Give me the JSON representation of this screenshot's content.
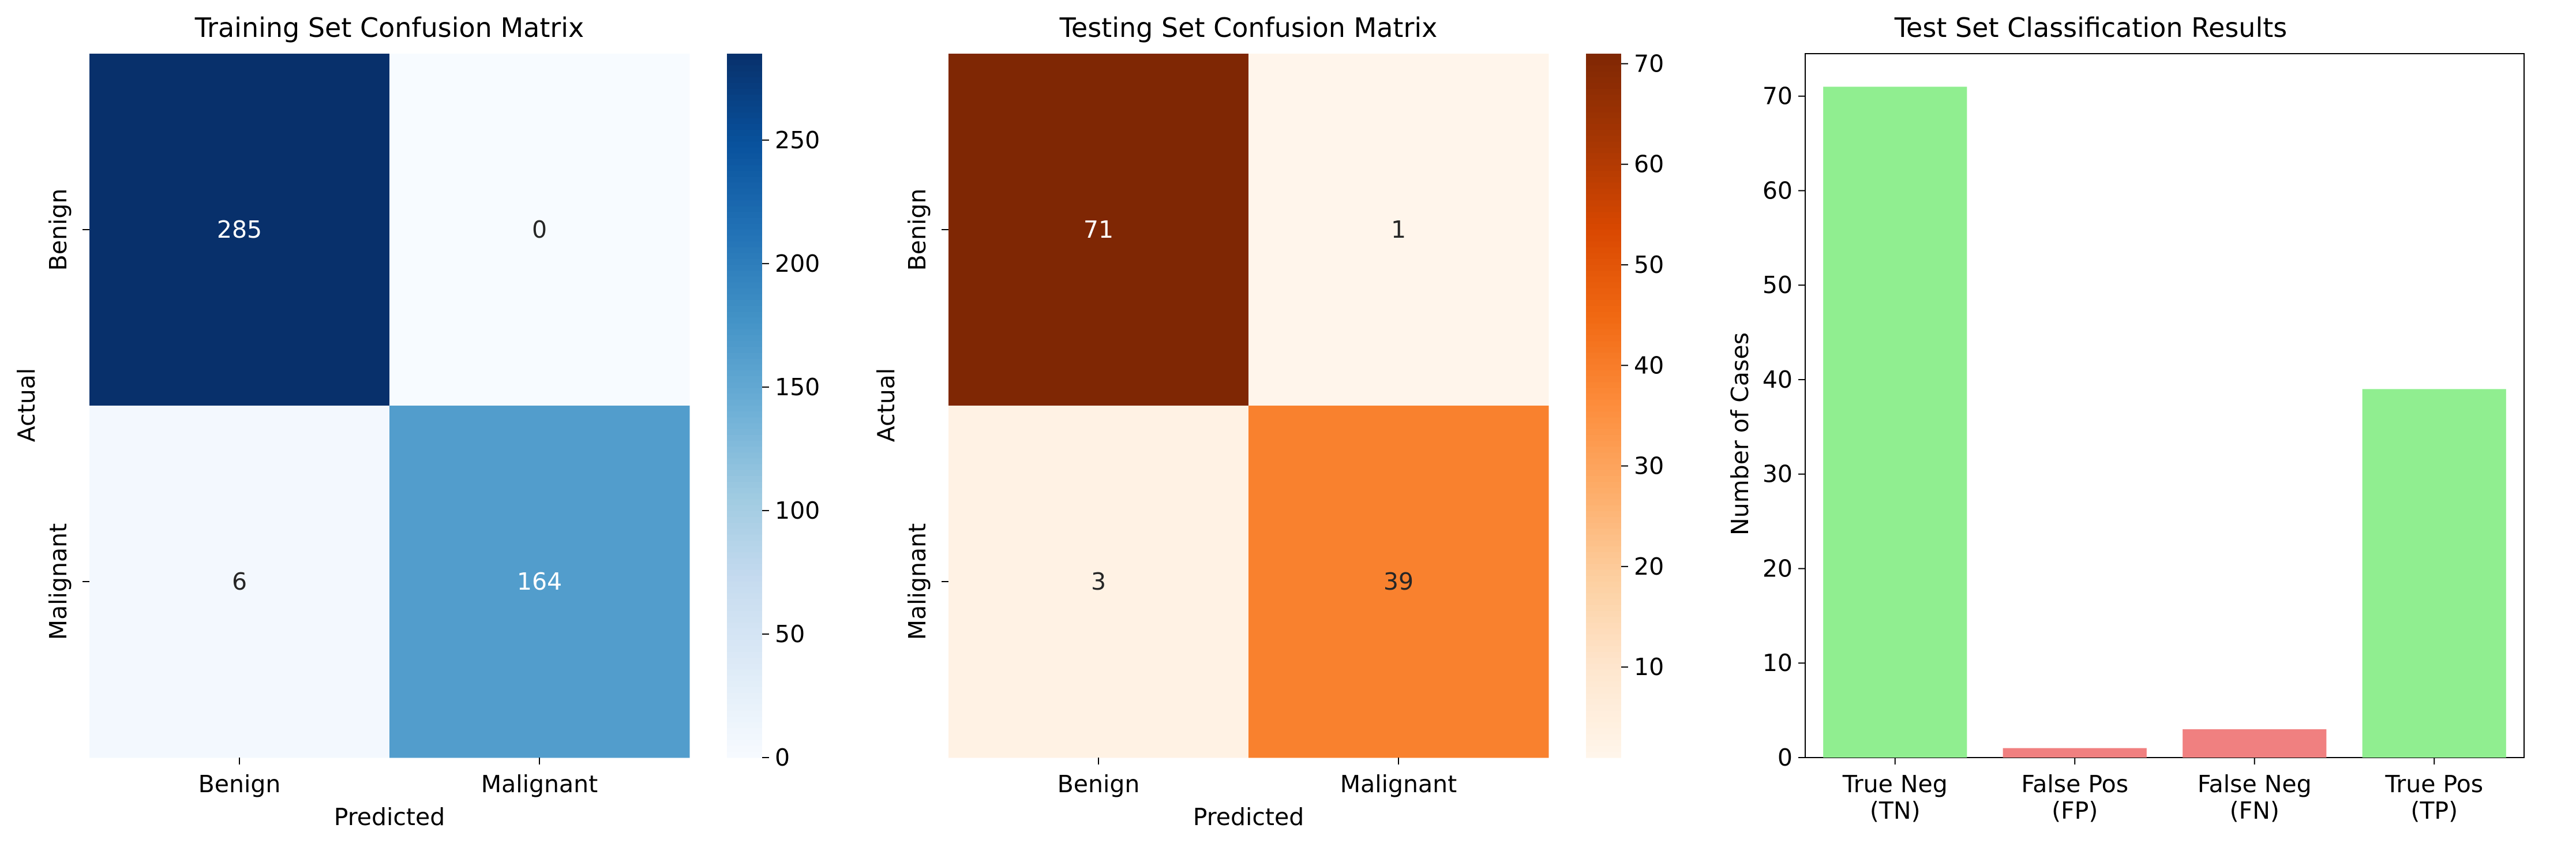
{
  "chart_data": [
    {
      "type": "heatmap",
      "title": "Training Set Confusion Matrix",
      "xlabel": "Predicted",
      "ylabel": "Actual",
      "x_categories": [
        "Benign",
        "Malignant"
      ],
      "y_categories": [
        "Benign",
        "Malignant"
      ],
      "values": [
        [
          285,
          0
        ],
        [
          6,
          164
        ]
      ],
      "colormap": "Blues",
      "colorbar": {
        "min": 0,
        "max": 285,
        "ticks": [
          0,
          50,
          100,
          150,
          200,
          250
        ]
      }
    },
    {
      "type": "heatmap",
      "title": "Testing Set Confusion Matrix",
      "xlabel": "Predicted",
      "ylabel": "Actual",
      "x_categories": [
        "Benign",
        "Malignant"
      ],
      "y_categories": [
        "Benign",
        "Malignant"
      ],
      "values": [
        [
          71,
          1
        ],
        [
          3,
          39
        ]
      ],
      "colormap": "Oranges",
      "colorbar": {
        "min": 1,
        "max": 71,
        "ticks": [
          10,
          20,
          30,
          40,
          50,
          60,
          70
        ]
      }
    },
    {
      "type": "bar",
      "title": "Test Set Classification Results",
      "xlabel": "",
      "ylabel": "Number of Cases",
      "categories": [
        "True Neg\n(TN)",
        "False Pos\n(FP)",
        "False Neg\n(FN)",
        "True Pos\n(TP)"
      ],
      "values": [
        71,
        1,
        3,
        39
      ],
      "colors": [
        "#90ee90",
        "#f08080",
        "#f08080",
        "#90ee90"
      ],
      "ylim": [
        0,
        74.5
      ],
      "yticks": [
        0,
        10,
        20,
        30,
        40,
        50,
        60,
        70
      ]
    }
  ]
}
